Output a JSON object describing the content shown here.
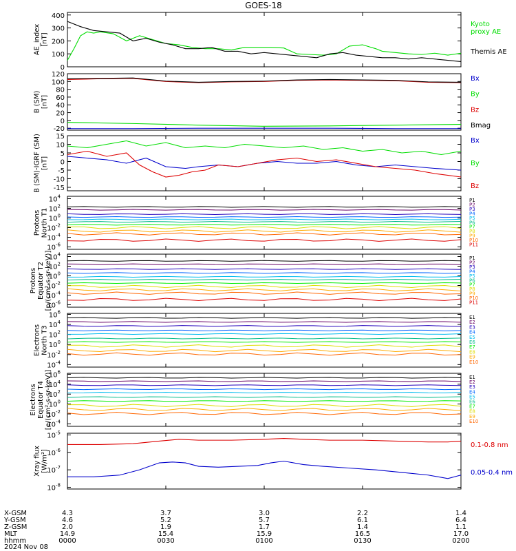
{
  "title": "GOES-18",
  "colors": {
    "black": "#000000",
    "blue": "#0000cc",
    "green": "#00dd00",
    "red": "#dd0000",
    "darkred": "#990000",
    "p": [
      "#000000",
      "#660066",
      "#2200bb",
      "#0066ff",
      "#00bbee",
      "#00bb88",
      "#00ee00",
      "#dddd00",
      "#ffaa00",
      "#ff6600",
      "#dd0000",
      "#990000"
    ]
  },
  "chart_data": [
    {
      "type": "line",
      "ylabel": "AE_index\n[nT]",
      "ylim": [
        0,
        420
      ],
      "ticks": [
        {
          "v": 0,
          "l": "0"
        },
        {
          "v": 100,
          "l": "100"
        },
        {
          "v": 200,
          "l": "200"
        },
        {
          "v": 300,
          "l": "300"
        },
        {
          "v": 400,
          "l": "400"
        }
      ],
      "x_range": [
        0,
        120
      ],
      "series": [
        {
          "name": "Kyoto\nproxy AE",
          "color": "#00dd00",
          "x": [
            0,
            2,
            4,
            6,
            8,
            10,
            14,
            18,
            22,
            26,
            30,
            34,
            38,
            42,
            46,
            50,
            54,
            58,
            62,
            66,
            70,
            74,
            78,
            82,
            86,
            90,
            92,
            94,
            96,
            100,
            104,
            108,
            112,
            116,
            120
          ],
          "y": [
            50,
            140,
            240,
            270,
            260,
            270,
            255,
            200,
            240,
            210,
            180,
            170,
            150,
            140,
            140,
            130,
            150,
            150,
            150,
            145,
            100,
            95,
            90,
            100,
            160,
            170,
            155,
            140,
            120,
            110,
            100,
            95,
            105,
            90,
            105
          ]
        },
        {
          "name": "Themis AE",
          "color": "#000000",
          "x": [
            0,
            4,
            8,
            12,
            16,
            20,
            24,
            28,
            32,
            36,
            40,
            44,
            48,
            52,
            56,
            60,
            64,
            68,
            72,
            76,
            80,
            84,
            88,
            92,
            96,
            100,
            104,
            108,
            112,
            116,
            120
          ],
          "y": [
            350,
            310,
            280,
            270,
            260,
            200,
            220,
            190,
            170,
            140,
            140,
            150,
            120,
            120,
            100,
            110,
            100,
            90,
            80,
            70,
            100,
            110,
            90,
            80,
            70,
            70,
            60,
            70,
            60,
            50,
            40
          ]
        }
      ]
    },
    {
      "type": "line",
      "ylabel": "B (SM)\n[nT]",
      "ylim": [
        -25,
        120
      ],
      "ticks": [
        {
          "v": -20,
          "l": "-20"
        },
        {
          "v": 0,
          "l": "0"
        },
        {
          "v": 20,
          "l": "20"
        },
        {
          "v": 40,
          "l": "40"
        },
        {
          "v": 60,
          "l": "60"
        },
        {
          "v": 80,
          "l": "80"
        },
        {
          "v": 100,
          "l": "100"
        },
        {
          "v": 120,
          "l": "120"
        }
      ],
      "x_range": [
        0,
        120
      ],
      "series": [
        {
          "name": "Bx",
          "color": "#0000cc",
          "x": [
            0,
            20,
            40,
            60,
            80,
            100,
            120
          ],
          "y": [
            -21,
            -21,
            -20,
            -20,
            -20,
            -21,
            -21
          ]
        },
        {
          "name": "By",
          "color": "#00dd00",
          "x": [
            0,
            20,
            40,
            60,
            80,
            100,
            120
          ],
          "y": [
            -5,
            -8,
            -12,
            -15,
            -14,
            -12,
            -10
          ]
        },
        {
          "name": "Bz",
          "color": "#dd0000",
          "x": [
            0,
            10,
            20,
            30,
            40,
            50,
            60,
            70,
            80,
            90,
            100,
            110,
            120
          ],
          "y": [
            105,
            107,
            108,
            100,
            97,
            99,
            100,
            103,
            104,
            103,
            102,
            98,
            97
          ]
        },
        {
          "name": "Bmag",
          "color": "#000000",
          "x": [
            0,
            10,
            20,
            30,
            40,
            50,
            60,
            70,
            80,
            90,
            100,
            110,
            120
          ],
          "y": [
            107,
            108,
            109,
            101,
            98,
            100,
            101,
            104,
            105,
            104,
            103,
            99,
            98
          ]
        }
      ]
    },
    {
      "type": "line",
      "ylabel": "B (SM)-IGRF (SM)\n[nT]",
      "ylim": [
        -17,
        15
      ],
      "ticks": [
        {
          "v": -15,
          "l": "-15"
        },
        {
          "v": -10,
          "l": "-10"
        },
        {
          "v": -5,
          "l": "-5"
        },
        {
          "v": 0,
          "l": "0"
        },
        {
          "v": 5,
          "l": "5"
        },
        {
          "v": 10,
          "l": "10"
        },
        {
          "v": 15,
          "l": "15"
        }
      ],
      "x_range": [
        0,
        120
      ],
      "series": [
        {
          "name": "Bx",
          "color": "#0000cc",
          "x": [
            0,
            6,
            12,
            18,
            24,
            30,
            36,
            40,
            46,
            52,
            58,
            64,
            70,
            76,
            82,
            88,
            94,
            100,
            106,
            112,
            120
          ],
          "y": [
            3,
            2,
            1,
            -1,
            2,
            -3,
            -4,
            -3,
            -2,
            -3,
            -1,
            0,
            -1,
            -1,
            0,
            -2,
            -3,
            -2,
            -3,
            -4,
            -5
          ]
        },
        {
          "name": "By",
          "color": "#00dd00",
          "x": [
            0,
            6,
            12,
            18,
            24,
            30,
            36,
            42,
            48,
            54,
            60,
            66,
            72,
            78,
            84,
            90,
            96,
            102,
            108,
            114,
            120
          ],
          "y": [
            9,
            8,
            10,
            12,
            9,
            11,
            8,
            9,
            8,
            10,
            9,
            8,
            9,
            7,
            8,
            6,
            7,
            5,
            6,
            4,
            6
          ]
        },
        {
          "name": "Bz",
          "color": "#dd0000",
          "x": [
            0,
            6,
            12,
            18,
            22,
            26,
            30,
            34,
            38,
            42,
            46,
            52,
            58,
            64,
            70,
            76,
            82,
            88,
            94,
            100,
            106,
            112,
            120
          ],
          "y": [
            4,
            6,
            3,
            5,
            -2,
            -6,
            -9,
            -8,
            -6,
            -5,
            -2,
            -3,
            -1,
            1,
            2,
            0,
            1,
            -1,
            -3,
            -4,
            -5,
            -7,
            -9
          ]
        }
      ]
    },
    {
      "type": "line",
      "ylabel": "Protons\nNorth T1",
      "log": true,
      "ylim": [
        -6.5,
        4.5
      ],
      "ticks": [
        {
          "v": 4,
          "l": "10",
          "e": "4"
        },
        {
          "v": 2,
          "l": "10",
          "e": "2"
        },
        {
          "v": 0,
          "l": "10",
          "e": "0"
        },
        {
          "v": -2,
          "l": "10",
          "e": "-2"
        },
        {
          "v": -4,
          "l": "10",
          "e": "-4"
        },
        {
          "v": -6,
          "l": "10",
          "e": "-6"
        }
      ],
      "x_range": [
        0,
        120
      ],
      "legend": [
        "P1",
        "P2",
        "P3",
        "P4",
        "P5",
        "P6",
        "P7",
        "P8",
        "P9",
        "P10",
        "P11"
      ],
      "levels": [
        2.3,
        1.7,
        0.8,
        0.2,
        -0.3,
        -0.8,
        -1.4,
        -2.0,
        -2.7,
        -3.3,
        -4.6
      ]
    },
    {
      "type": "line",
      "ylabel": "Protons\nEquator T2\n[p/(cm²-s-sr-keV)]",
      "log": true,
      "ylim": [
        -6.5,
        4.5
      ],
      "ticks": [
        {
          "v": 4,
          "l": "10",
          "e": "4"
        },
        {
          "v": 2,
          "l": "10",
          "e": "2"
        },
        {
          "v": 0,
          "l": "10",
          "e": "0"
        },
        {
          "v": -2,
          "l": "10",
          "e": "-2"
        },
        {
          "v": -4,
          "l": "10",
          "e": "-4"
        },
        {
          "v": -6,
          "l": "10",
          "e": "-6"
        }
      ],
      "x_range": [
        0,
        120
      ],
      "legend": [
        "P1",
        "P2",
        "P3",
        "P4",
        "P5",
        "P6",
        "P7",
        "P8",
        "P9",
        "P10",
        "P11"
      ],
      "levels": [
        3.1,
        2.4,
        1.4,
        0.6,
        -0.2,
        -0.8,
        -1.5,
        -2.2,
        -2.9,
        -3.6,
        -4.9
      ]
    },
    {
      "type": "line",
      "ylabel": "Electrons\nNorth T3",
      "log": true,
      "ylim": [
        -4.5,
        6.2
      ],
      "ticks": [
        {
          "v": 6,
          "l": "10",
          "e": "6"
        },
        {
          "v": 4,
          "l": "10",
          "e": "4"
        },
        {
          "v": 2,
          "l": "10",
          "e": "2"
        },
        {
          "v": 0,
          "l": "10",
          "e": "0"
        },
        {
          "v": -2,
          "l": "10",
          "e": "-2"
        },
        {
          "v": -4,
          "l": "10",
          "e": "-4"
        }
      ],
      "x_range": [
        0,
        120
      ],
      "legend": [
        "E1",
        "E2",
        "E3",
        "E4",
        "E5",
        "E6",
        "E7",
        "E8",
        "E9",
        "E10"
      ],
      "levels": [
        5.3,
        4.5,
        3.7,
        2.8,
        2.1,
        1.2,
        0.5,
        -0.3,
        -1.2,
        -1.9
      ]
    },
    {
      "type": "line",
      "ylabel": "Electrons\nEquator T4\n[e/(cm²-s-sr-keV)]",
      "log": true,
      "ylim": [
        -4.5,
        6.2
      ],
      "ticks": [
        {
          "v": 6,
          "l": "10",
          "e": "6"
        },
        {
          "v": 4,
          "l": "10",
          "e": "4"
        },
        {
          "v": 2,
          "l": "10",
          "e": "2"
        },
        {
          "v": 0,
          "l": "10",
          "e": "0"
        },
        {
          "v": -2,
          "l": "10",
          "e": "-2"
        },
        {
          "v": -4,
          "l": "10",
          "e": "-4"
        }
      ],
      "x_range": [
        0,
        120
      ],
      "legend": [
        "E1",
        "E2",
        "E3",
        "E4",
        "E5",
        "E6",
        "E7",
        "E8",
        "E9",
        "E10"
      ],
      "levels": [
        5.3,
        4.6,
        3.8,
        3.0,
        2.3,
        1.4,
        0.6,
        -0.3,
        -1.1,
        -1.9
      ]
    },
    {
      "type": "line",
      "ylabel": "Xray flux\n[W/m²]",
      "log": true,
      "ylim": [
        -8.1,
        -4.9
      ],
      "ticks": [
        {
          "v": -5,
          "l": "10",
          "e": "-5"
        },
        {
          "v": -6,
          "l": "10",
          "e": "-6"
        },
        {
          "v": -7,
          "l": "10",
          "e": "-7"
        },
        {
          "v": -8,
          "l": "10",
          "e": "-8"
        }
      ],
      "x_range": [
        0,
        120
      ],
      "series": [
        {
          "name": "0.1-0.8 nm",
          "color": "#dd0000",
          "x": [
            0,
            10,
            20,
            28,
            34,
            40,
            50,
            60,
            66,
            72,
            80,
            90,
            100,
            110,
            116,
            120
          ],
          "y": [
            -5.55,
            -5.55,
            -5.5,
            -5.35,
            -5.25,
            -5.3,
            -5.3,
            -5.25,
            -5.2,
            -5.25,
            -5.3,
            -5.3,
            -5.35,
            -5.4,
            -5.4,
            -5.35
          ]
        },
        {
          "name": "0.05-0.4 nm",
          "color": "#0000cc",
          "x": [
            0,
            8,
            16,
            22,
            28,
            32,
            36,
            40,
            46,
            52,
            58,
            62,
            66,
            72,
            78,
            86,
            94,
            102,
            110,
            116,
            120
          ],
          "y": [
            -7.4,
            -7.4,
            -7.3,
            -7.0,
            -6.6,
            -6.55,
            -6.6,
            -6.8,
            -6.85,
            -6.8,
            -6.75,
            -6.6,
            -6.5,
            -6.7,
            -6.8,
            -6.9,
            -7.0,
            -7.15,
            -7.3,
            -7.5,
            -7.3
          ]
        }
      ]
    }
  ],
  "x_axis": {
    "row_labels": [
      "X-GSM",
      "Y-GSM",
      "Z-GSM",
      "MLT",
      "hhmm",
      "2024 Nov 08"
    ],
    "ticks": [
      {
        "x": 0,
        "values": [
          "4.3",
          "4.6",
          "2.0",
          "14.9",
          "0000"
        ]
      },
      {
        "x": 30,
        "values": [
          "3.7",
          "5.2",
          "1.9",
          "15.4",
          "0030"
        ]
      },
      {
        "x": 60,
        "values": [
          "3.0",
          "5.7",
          "1.7",
          "15.9",
          "0100"
        ]
      },
      {
        "x": 90,
        "values": [
          "2.2",
          "6.1",
          "1.4",
          "16.5",
          "0130"
        ]
      },
      {
        "x": 120,
        "values": [
          "1.4",
          "6.4",
          "1.1",
          "17.0",
          "0200"
        ]
      }
    ]
  }
}
